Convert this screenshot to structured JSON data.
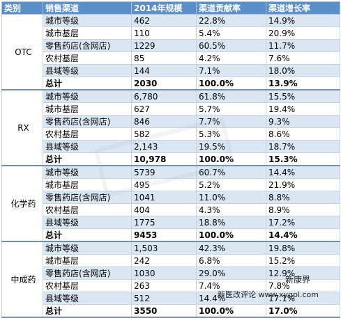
{
  "headers": [
    "类别",
    "销售渠道",
    "2014年规模",
    "渠道贡献率",
    "渠道增长率"
  ],
  "groups": [
    {
      "category": "OTC",
      "rows": [
        [
          "城市等级",
          "462",
          "22.8%",
          "14.9%"
        ],
        [
          "城市基层",
          "110",
          "5.4%",
          "20.9%"
        ],
        [
          "零售药店(含网店)",
          "1229",
          "60.5%",
          "11.7%"
        ],
        [
          "农村基层",
          "85",
          "4.2%",
          "7.6%"
        ],
        [
          "县域等级",
          "144",
          "7.1%",
          "18.0%"
        ],
        [
          "总计",
          "2030",
          "100.0%",
          "13.9%"
        ]
      ]
    },
    {
      "category": "RX",
      "rows": [
        [
          "城市等级",
          "6,780",
          "61.8%",
          "15.5%"
        ],
        [
          "城市基层",
          "627",
          "5.7%",
          "19.4%"
        ],
        [
          "零售药店(含网店)",
          "846",
          "7.7%",
          "9.3%"
        ],
        [
          "农村基层",
          "582",
          "5.3%",
          "8.6%"
        ],
        [
          "县域等级",
          "2,143",
          "19.5%",
          "18.7%"
        ],
        [
          "总计",
          "10,978",
          "100.0%",
          "15.3%"
        ]
      ]
    },
    {
      "category": "化学药",
      "rows": [
        [
          "城市等级",
          "5739",
          "60.7%",
          "14.4%"
        ],
        [
          "城市基层",
          "495",
          "5.2%",
          "21.9%"
        ],
        [
          "零售药店(含网店)",
          "1041",
          "11.0%",
          "8.8%"
        ],
        [
          "农村基层",
          "404",
          "4.3%",
          "8.9%"
        ],
        [
          "县域等级",
          "1775",
          "18.8%",
          "17.2%"
        ],
        [
          "总计",
          "9453",
          "100.0%",
          "14.4%"
        ]
      ]
    },
    {
      "category": "中成药",
      "rows": [
        [
          "城市等级",
          "1,503",
          "42.3%",
          "19.8%"
        ],
        [
          "城市基层",
          "242",
          "6.8%",
          "15.2%"
        ],
        [
          "零售药店(含网店)",
          "1030",
          "29.0%",
          "12.9%"
        ],
        [
          "农村基层",
          "263",
          "7.4%",
          "7.8%"
        ],
        [
          "县域等级",
          "512",
          "14.4%",
          "17.1%"
        ],
        [
          "总计",
          "3550",
          "100.0%",
          "17.0%"
        ]
      ]
    }
  ],
  "watermark": {
    "logo_text": "新康界",
    "footer_text": "新医改评论 www.xygpl.com"
  }
}
